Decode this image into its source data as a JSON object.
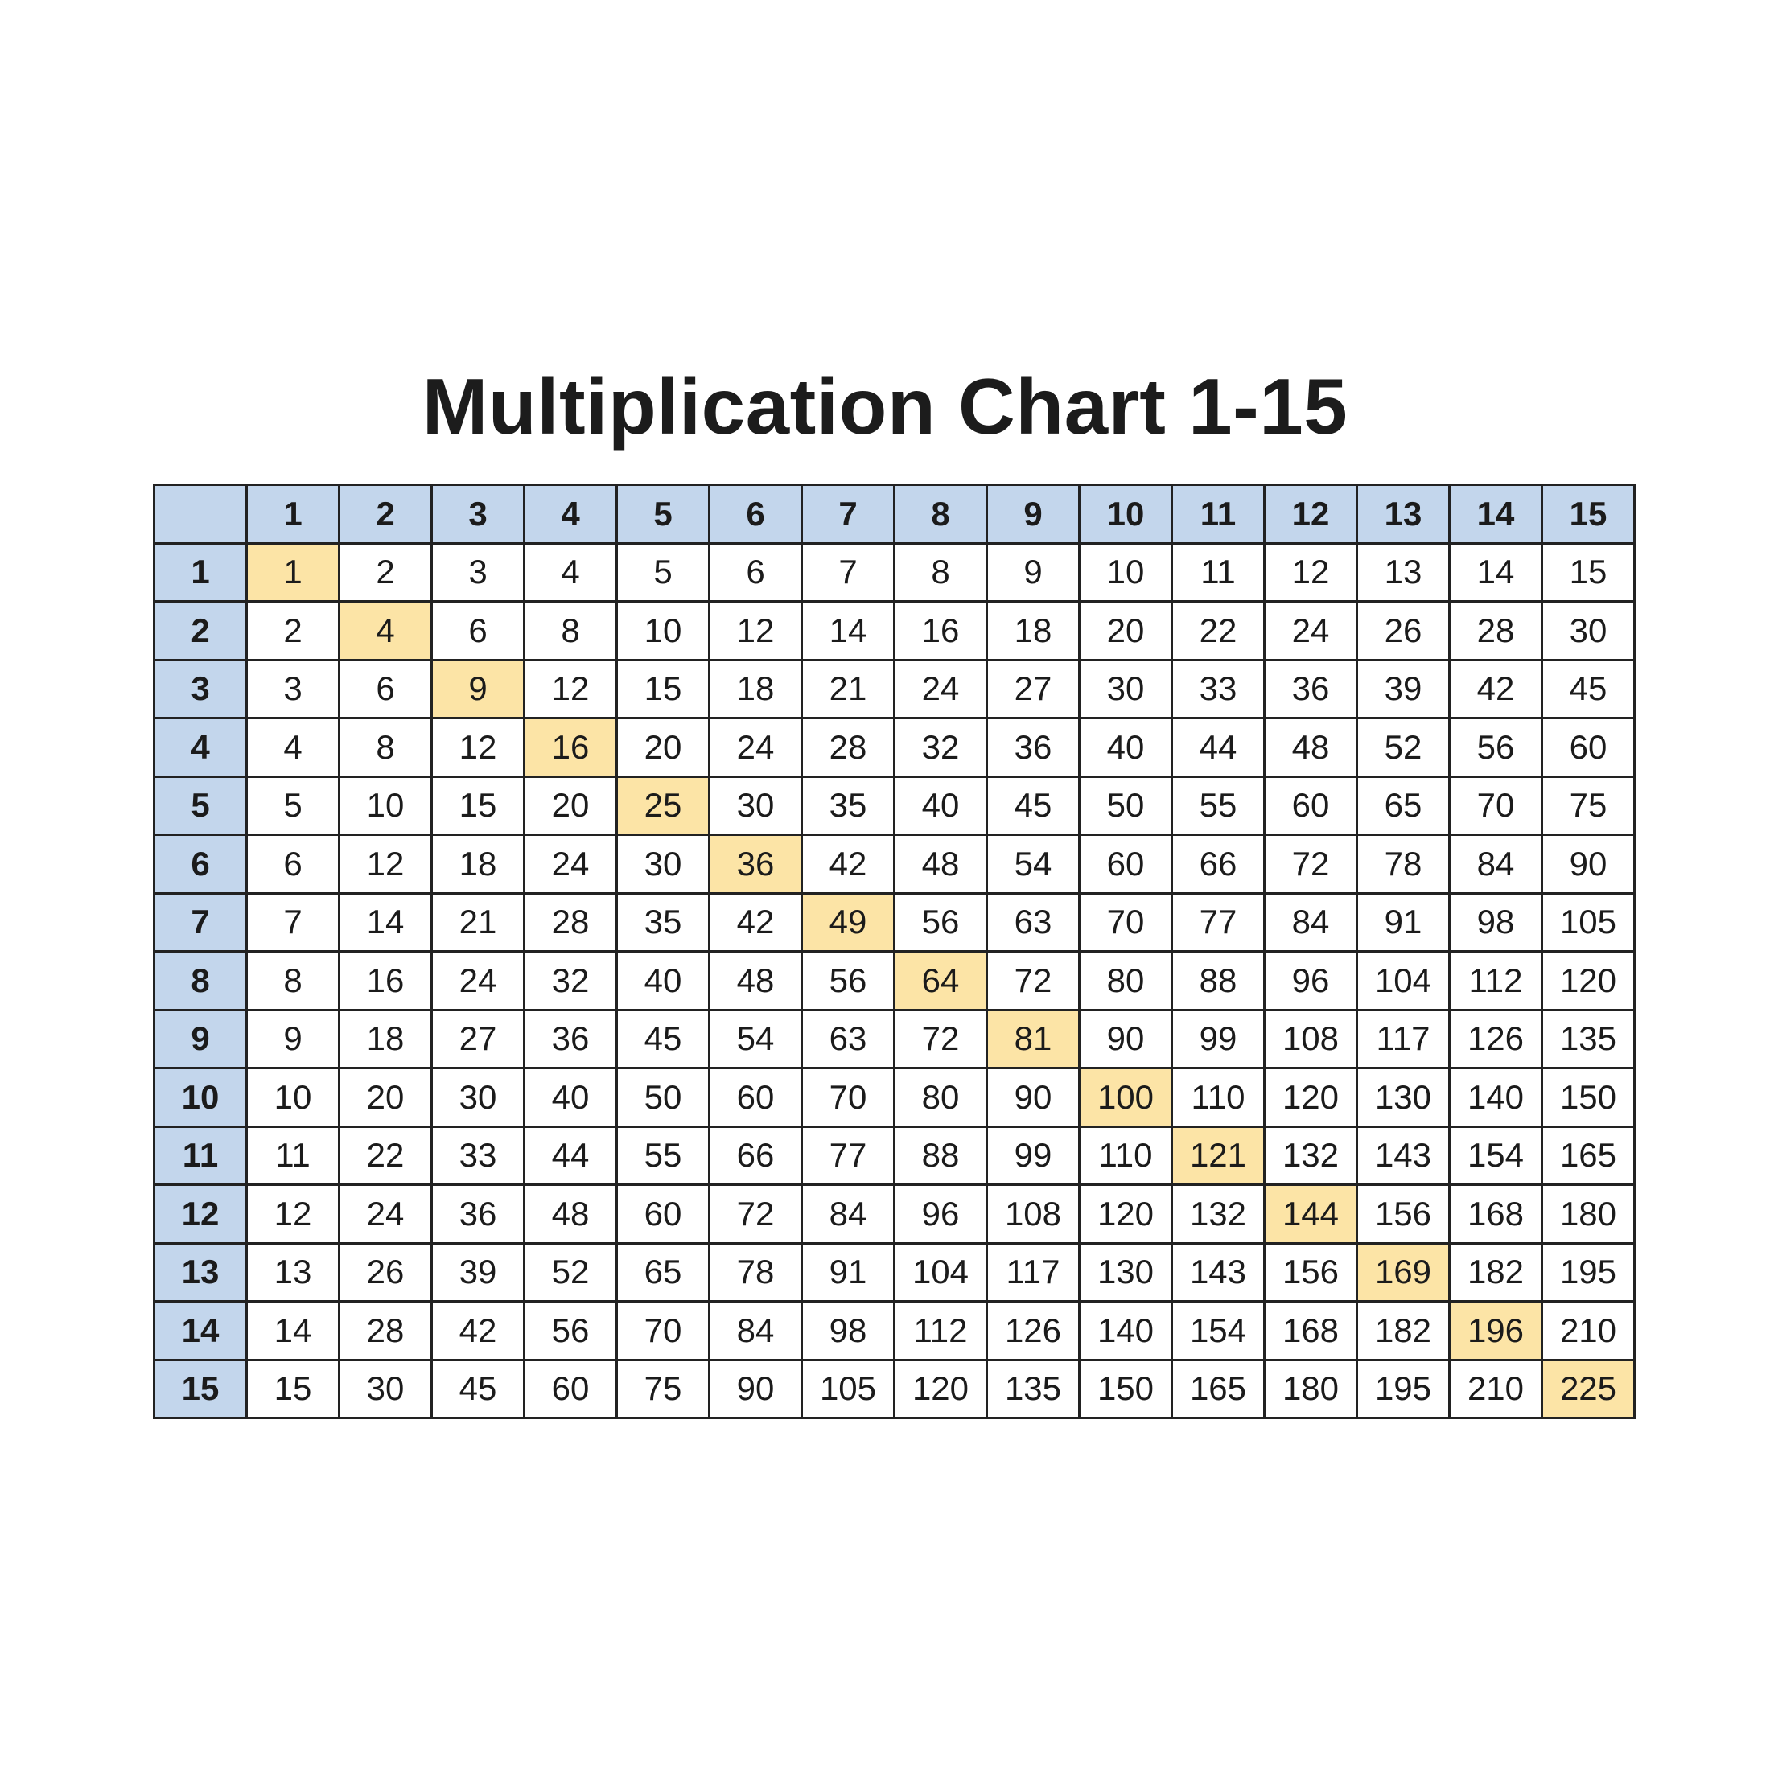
{
  "title": "Multiplication Chart 1-15",
  "colors": {
    "header_fill": "#c3d6ec",
    "diagonal_fill": "#fce4a6",
    "cell_fill": "#ffffff",
    "grid_line": "#222222",
    "text": "#1b1b1b"
  },
  "chart_data": {
    "type": "table",
    "title": "Multiplication Chart 1-15",
    "column_headers": [
      1,
      2,
      3,
      4,
      5,
      6,
      7,
      8,
      9,
      10,
      11,
      12,
      13,
      14,
      15
    ],
    "row_headers": [
      1,
      2,
      3,
      4,
      5,
      6,
      7,
      8,
      9,
      10,
      11,
      12,
      13,
      14,
      15
    ],
    "cells": [
      [
        1,
        2,
        3,
        4,
        5,
        6,
        7,
        8,
        9,
        10,
        11,
        12,
        13,
        14,
        15
      ],
      [
        2,
        4,
        6,
        8,
        10,
        12,
        14,
        16,
        18,
        20,
        22,
        24,
        26,
        28,
        30
      ],
      [
        3,
        6,
        9,
        12,
        15,
        18,
        21,
        24,
        27,
        30,
        33,
        36,
        39,
        42,
        45
      ],
      [
        4,
        8,
        12,
        16,
        20,
        24,
        28,
        32,
        36,
        40,
        44,
        48,
        52,
        56,
        60
      ],
      [
        5,
        10,
        15,
        20,
        25,
        30,
        35,
        40,
        45,
        50,
        55,
        60,
        65,
        70,
        75
      ],
      [
        6,
        12,
        18,
        24,
        30,
        36,
        42,
        48,
        54,
        60,
        66,
        72,
        78,
        84,
        90
      ],
      [
        7,
        14,
        21,
        28,
        35,
        42,
        49,
        56,
        63,
        70,
        77,
        84,
        91,
        98,
        105
      ],
      [
        8,
        16,
        24,
        32,
        40,
        48,
        56,
        64,
        72,
        80,
        88,
        96,
        104,
        112,
        120
      ],
      [
        9,
        18,
        27,
        36,
        45,
        54,
        63,
        72,
        81,
        90,
        99,
        108,
        117,
        126,
        135
      ],
      [
        10,
        20,
        30,
        40,
        50,
        60,
        70,
        80,
        90,
        100,
        110,
        120,
        130,
        140,
        150
      ],
      [
        11,
        22,
        33,
        44,
        55,
        66,
        77,
        88,
        99,
        110,
        121,
        132,
        143,
        154,
        165
      ],
      [
        12,
        24,
        36,
        48,
        60,
        72,
        84,
        96,
        108,
        120,
        132,
        144,
        156,
        168,
        180
      ],
      [
        13,
        26,
        39,
        52,
        65,
        78,
        91,
        104,
        117,
        130,
        143,
        156,
        169,
        182,
        195
      ],
      [
        14,
        28,
        42,
        56,
        70,
        84,
        98,
        112,
        126,
        140,
        154,
        168,
        182,
        196,
        210
      ],
      [
        15,
        30,
        45,
        60,
        75,
        90,
        105,
        120,
        135,
        150,
        165,
        180,
        195,
        210,
        225
      ]
    ],
    "highlighted": "diagonal (squares)"
  }
}
